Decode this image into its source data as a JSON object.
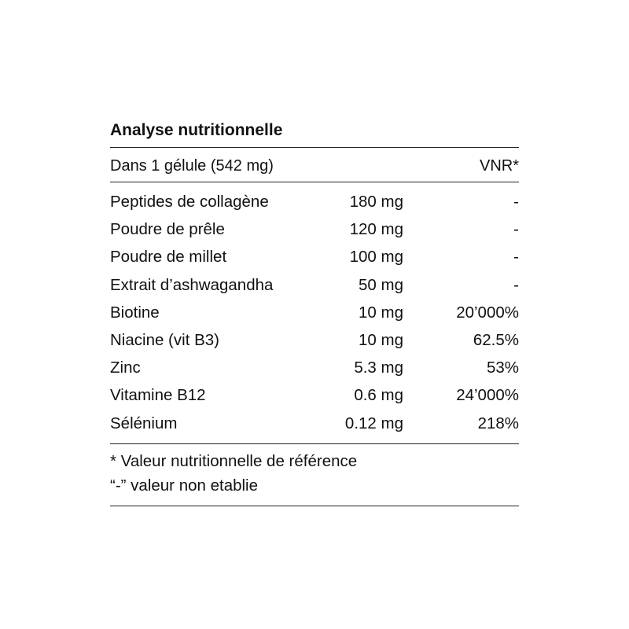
{
  "title": "Analyse nutritionnelle",
  "header": {
    "left": "Dans 1 gélule (542 mg)",
    "right": "VNR*"
  },
  "rows": [
    {
      "name": "Peptides de collagène",
      "amount": "180 mg",
      "vnr": "-"
    },
    {
      "name": "Poudre de prêle",
      "amount": "120 mg",
      "vnr": "-"
    },
    {
      "name": "Poudre de millet",
      "amount": "100 mg",
      "vnr": "-"
    },
    {
      "name": "Extrait d’ashwagandha",
      "amount": "50 mg",
      "vnr": "-"
    },
    {
      "name": "Biotine",
      "amount": "10 mg",
      "vnr": "20’000%"
    },
    {
      "name": "Niacine (vit B3)",
      "amount": "10 mg",
      "vnr": "62.5%"
    },
    {
      "name": "Zinc",
      "amount": "5.3 mg",
      "vnr": "53%"
    },
    {
      "name": "Vitamine B12",
      "amount": "0.6 mg",
      "vnr": "24’000%"
    },
    {
      "name": "Sélénium",
      "amount": "0.12 mg",
      "vnr": "218%"
    }
  ],
  "footnotes": [
    "* Valeur nutritionnelle de référence",
    "“-” valeur non etablie"
  ]
}
